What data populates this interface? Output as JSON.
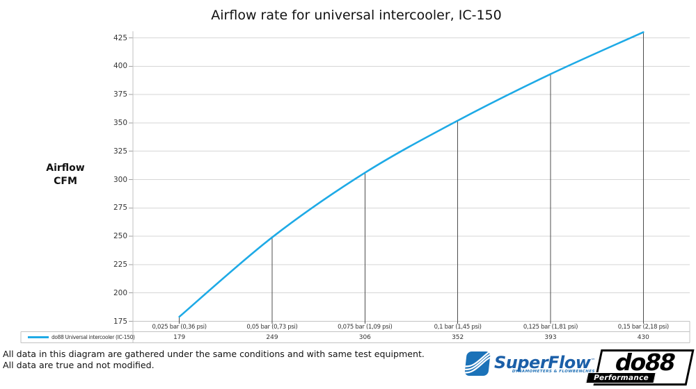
{
  "title": "Airflow rate for universal intercooler, IC-150",
  "y_axis": {
    "title_line1": "Airflow",
    "title_line2": "CFM"
  },
  "footer": {
    "line1": "All data in this diagram are gathered under the same conditions and with same test equipment.",
    "line2": "All data are true and not modified."
  },
  "logos": {
    "superflow": {
      "name": "SuperFlow",
      "trademark": "™",
      "tagline": "DYNAMOMETERS & FLOWBENCHES"
    },
    "do88": {
      "name": "do88",
      "tagline": "Performance"
    }
  },
  "colors": {
    "series": "#1eaae6",
    "gridline": "#d6d6d6",
    "axis": "#c2c2c2",
    "drop_line": "#4d4d4d",
    "superflow_blue": "#1b72b8",
    "do88_black": "#000000"
  },
  "chart_data": {
    "type": "line",
    "title": "Airflow rate for universal intercooler, IC-150",
    "ylabel": "Airflow CFM",
    "xlabel": "",
    "categories": [
      "0,025 bar (0,36 psi)",
      "0,05 bar (0,73 psi)",
      "0,075 bar (1,09 psi)",
      "0,1 bar (1,45 psi)",
      "0,125 bar (1,81 psi)",
      "0,15 bar (2,18 psi)"
    ],
    "series": [
      {
        "name": "do88 Universal intercooler (IC-150)",
        "values": [
          179,
          249,
          306,
          352,
          393,
          430
        ],
        "color": "#1eaae6"
      }
    ],
    "ylim": [
      175,
      425
    ],
    "y_ticks": [
      175,
      200,
      225,
      250,
      275,
      300,
      325,
      350,
      375,
      400,
      425
    ],
    "grid": "horizontal-major",
    "smoothed_line": true,
    "drop_lines": true,
    "legend_position": "bottom-data-table"
  }
}
